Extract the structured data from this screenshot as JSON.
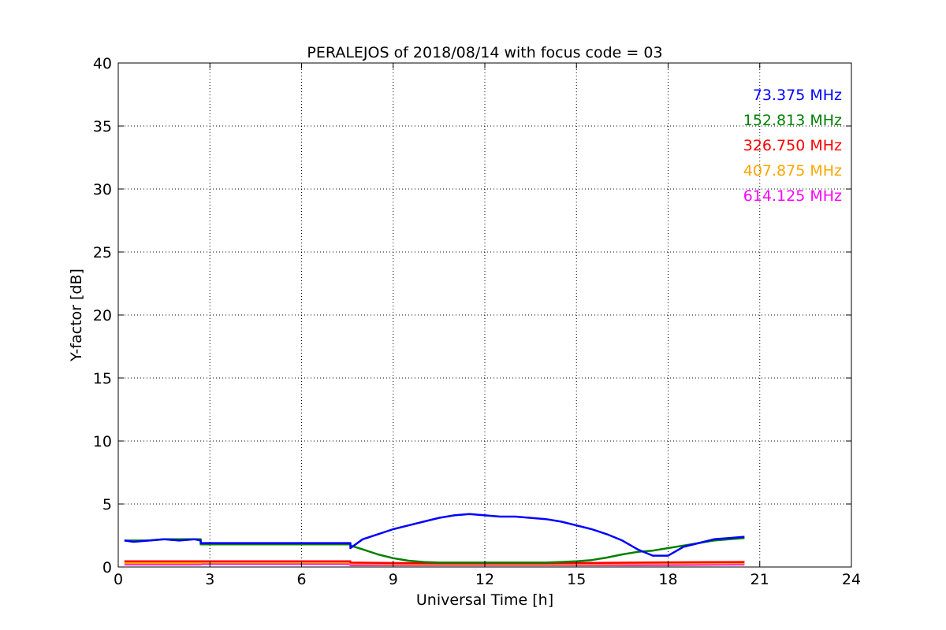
{
  "chart_data": {
    "type": "line",
    "title": "PERALEJOS of 2018/08/14 with focus code = 03",
    "xlabel": "Universal Time [h]",
    "ylabel": "Y-factor [dB]",
    "xlim": [
      0,
      24
    ],
    "ylim": [
      0,
      40
    ],
    "xticks": [
      0,
      3,
      6,
      9,
      12,
      15,
      18,
      21,
      24
    ],
    "yticks": [
      0,
      5,
      10,
      15,
      20,
      25,
      30,
      35,
      40
    ],
    "grid": true,
    "legend_position": "top-right",
    "series": [
      {
        "name": "73.375 MHz",
        "color": "#0000ff",
        "x": [
          0.2,
          0.5,
          1.0,
          1.5,
          2.0,
          2.5,
          2.7,
          2.7,
          7.6,
          7.6,
          8.0,
          8.5,
          9.0,
          9.5,
          10.0,
          10.5,
          11.0,
          11.5,
          12.0,
          12.5,
          13.0,
          13.5,
          14.0,
          14.5,
          15.0,
          15.5,
          16.0,
          16.5,
          17.0,
          17.5,
          18.0,
          18.5,
          19.0,
          19.5,
          20.0,
          20.5
        ],
        "y": [
          2.1,
          2.0,
          2.1,
          2.2,
          2.1,
          2.2,
          2.1,
          1.9,
          1.9,
          1.5,
          2.2,
          2.6,
          3.0,
          3.3,
          3.6,
          3.9,
          4.1,
          4.2,
          4.1,
          4.0,
          4.0,
          3.9,
          3.8,
          3.6,
          3.3,
          3.0,
          2.6,
          2.1,
          1.4,
          0.9,
          0.9,
          1.6,
          1.9,
          2.2,
          2.3,
          2.4
        ]
      },
      {
        "name": "152.813 MHz",
        "color": "#008000",
        "x": [
          0.2,
          0.5,
          1.0,
          1.5,
          2.0,
          2.5,
          2.7,
          2.7,
          7.6,
          7.6,
          8.0,
          8.5,
          9.0,
          9.5,
          10.0,
          10.5,
          11.0,
          11.5,
          12.0,
          12.5,
          13.0,
          13.5,
          14.0,
          14.5,
          15.0,
          15.5,
          16.0,
          16.5,
          17.0,
          17.5,
          18.0,
          18.5,
          19.0,
          19.5,
          20.0,
          20.5
        ],
        "y": [
          2.1,
          2.1,
          2.1,
          2.2,
          2.2,
          2.2,
          2.2,
          1.8,
          1.8,
          1.7,
          1.4,
          1.0,
          0.7,
          0.5,
          0.4,
          0.35,
          0.35,
          0.35,
          0.35,
          0.35,
          0.35,
          0.35,
          0.35,
          0.4,
          0.45,
          0.55,
          0.75,
          1.0,
          1.2,
          1.3,
          1.5,
          1.7,
          1.9,
          2.1,
          2.2,
          2.3
        ]
      },
      {
        "name": "326.750 MHz",
        "color": "#ff0000",
        "x": [
          0.2,
          2.7,
          2.7,
          7.6,
          7.6,
          10.0,
          14.0,
          17.0,
          20.5
        ],
        "y": [
          0.45,
          0.45,
          0.45,
          0.45,
          0.35,
          0.3,
          0.3,
          0.35,
          0.4
        ]
      },
      {
        "name": "407.875 MHz",
        "color": "#ffa500",
        "x": [
          0.2,
          2.7,
          2.7,
          7.6,
          7.6,
          10.0,
          14.0,
          17.0,
          20.5
        ],
        "y": [
          0.3,
          0.3,
          0.35,
          0.35,
          0.25,
          0.2,
          0.2,
          0.25,
          0.3
        ]
      },
      {
        "name": "614.125 MHz",
        "color": "#ff00ff",
        "x": [
          0.2,
          2.7,
          2.7,
          7.6,
          7.6,
          10.0,
          14.0,
          17.0,
          20.5
        ],
        "y": [
          0.2,
          0.2,
          0.25,
          0.25,
          0.15,
          0.15,
          0.15,
          0.15,
          0.2
        ]
      }
    ]
  }
}
